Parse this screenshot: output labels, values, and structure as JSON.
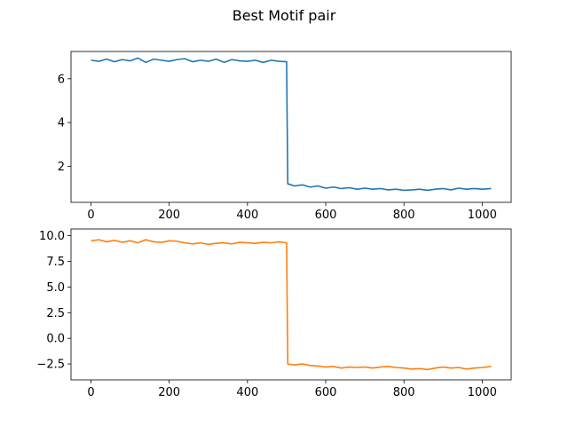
{
  "figure": {
    "suptitle": "Best Motif pair"
  },
  "chart_data": [
    {
      "type": "line",
      "title": "",
      "xlabel": "",
      "ylabel": "",
      "xlim": [
        -51.1,
        1074.1
      ],
      "ylim": [
        0.35,
        7.25
      ],
      "xticks": [
        0,
        200,
        400,
        600,
        800,
        1000
      ],
      "yticks": [
        2,
        4,
        6
      ],
      "color": "#1f77b4",
      "grid": false,
      "series": [
        {
          "x": [
            0,
            20,
            40,
            60,
            80,
            100,
            120,
            140,
            160,
            180,
            200,
            220,
            240,
            260,
            280,
            300,
            320,
            340,
            360,
            380,
            400,
            420,
            440,
            460,
            480,
            500,
            503,
            520,
            540,
            560,
            580,
            600,
            620,
            640,
            660,
            680,
            700,
            720,
            740,
            760,
            780,
            800,
            820,
            840,
            860,
            880,
            900,
            920,
            940,
            960,
            980,
            1000,
            1023
          ],
          "y": [
            6.85,
            6.8,
            6.9,
            6.78,
            6.88,
            6.82,
            6.95,
            6.75,
            6.9,
            6.85,
            6.8,
            6.88,
            6.92,
            6.78,
            6.85,
            6.8,
            6.9,
            6.75,
            6.88,
            6.82,
            6.8,
            6.85,
            6.75,
            6.85,
            6.8,
            6.78,
            1.2,
            1.1,
            1.15,
            1.05,
            1.1,
            1.0,
            1.05,
            0.98,
            1.02,
            0.95,
            1.0,
            0.95,
            0.98,
            0.92,
            0.95,
            0.9,
            0.92,
            0.95,
            0.9,
            0.95,
            0.98,
            0.92,
            1.0,
            0.95,
            0.98,
            0.95,
            0.98
          ]
        }
      ]
    },
    {
      "type": "line",
      "title": "",
      "xlabel": "",
      "ylabel": "",
      "xlim": [
        -51.1,
        1074.1
      ],
      "ylim": [
        -4.05,
        10.65
      ],
      "xticks": [
        0,
        200,
        400,
        600,
        800,
        1000
      ],
      "yticks": [
        -2.5,
        0.0,
        2.5,
        5.0,
        7.5,
        10.0
      ],
      "yticklabels": [
        "−2.5",
        "0.0",
        "2.5",
        "5.0",
        "7.5",
        "10.0"
      ],
      "color": "#ff7f0e",
      "grid": false,
      "series": [
        {
          "x": [
            0,
            20,
            40,
            60,
            80,
            100,
            120,
            140,
            160,
            180,
            200,
            220,
            240,
            260,
            280,
            300,
            320,
            340,
            360,
            380,
            400,
            420,
            440,
            460,
            480,
            500,
            503,
            520,
            540,
            560,
            580,
            600,
            620,
            640,
            660,
            680,
            700,
            720,
            740,
            760,
            780,
            800,
            820,
            840,
            860,
            880,
            900,
            920,
            940,
            960,
            980,
            1000,
            1023
          ],
          "y": [
            9.5,
            9.6,
            9.4,
            9.55,
            9.35,
            9.5,
            9.3,
            9.6,
            9.4,
            9.35,
            9.5,
            9.45,
            9.3,
            9.2,
            9.3,
            9.15,
            9.25,
            9.3,
            9.2,
            9.35,
            9.3,
            9.25,
            9.35,
            9.3,
            9.4,
            9.3,
            -2.5,
            -2.6,
            -2.5,
            -2.65,
            -2.7,
            -2.8,
            -2.75,
            -2.9,
            -2.8,
            -2.85,
            -2.8,
            -2.9,
            -2.8,
            -2.75,
            -2.85,
            -2.9,
            -3.0,
            -2.95,
            -3.05,
            -2.9,
            -2.8,
            -2.9,
            -2.85,
            -3.0,
            -2.9,
            -2.85,
            -2.75
          ]
        }
      ]
    }
  ]
}
